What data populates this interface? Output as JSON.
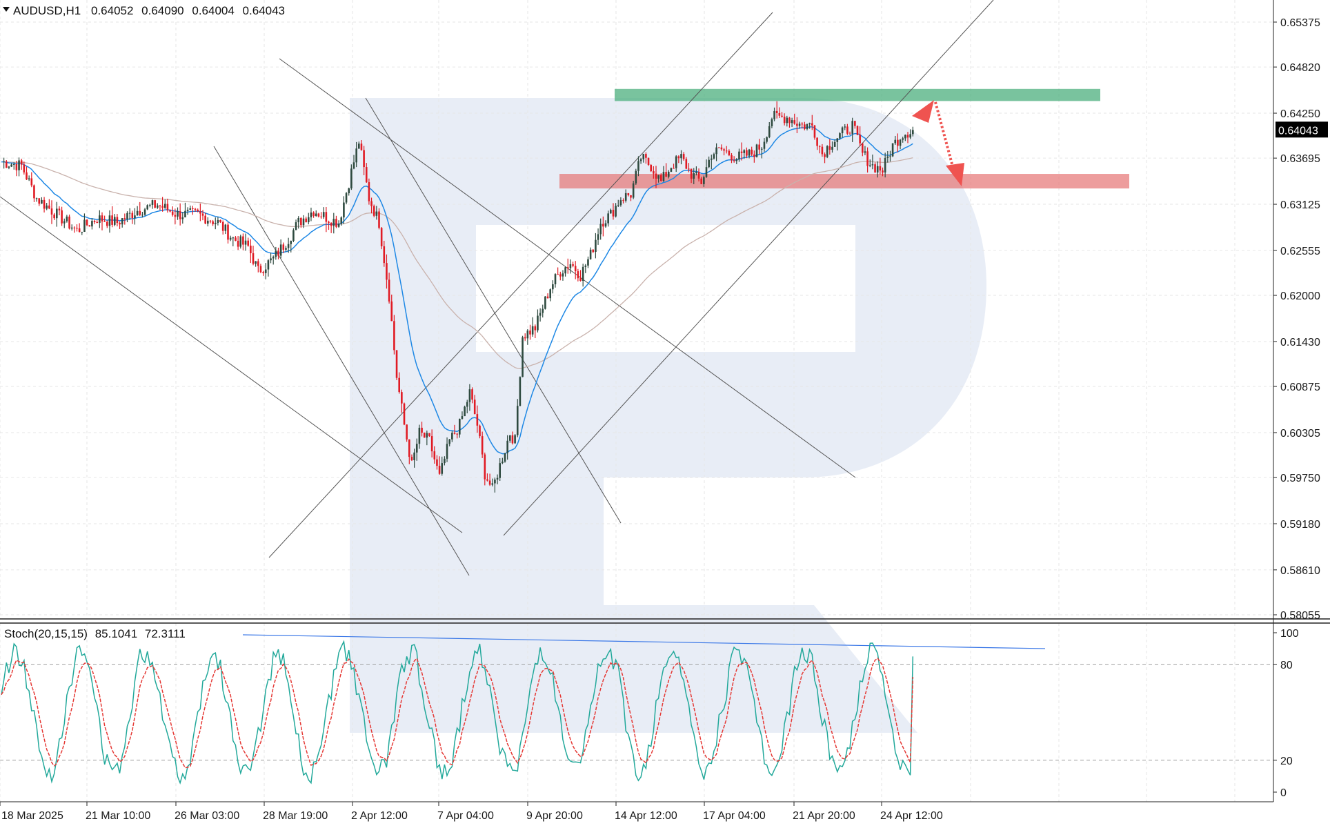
{
  "header": {
    "symbol_timeframe": "AUDUSD,H1",
    "open": "0.64052",
    "high": "0.64090",
    "low": "0.64004",
    "close": "0.64043"
  },
  "current_price": "0.64043",
  "stoch": {
    "label": "Stoch(20,15,15)",
    "main_value": "85.1041",
    "signal_value": "72.3111",
    "levels": [
      100,
      80,
      20,
      0
    ],
    "ticks": [
      "100",
      "80",
      "20",
      "0"
    ]
  },
  "colors": {
    "bull_candle": "#2e4a3f",
    "bear_candle": "#e01b24",
    "ma_fast": "#1e88e5",
    "ma_slow": "#c9b2ac",
    "resistance_zone": "#4caf7d",
    "support_zone": "#e57373",
    "stoch_main": "#21a89a",
    "stoch_signal": "#e53935",
    "trendline": "#555555",
    "arrow": "#ef5350",
    "watermark": "#e8edf6"
  },
  "chart_data": [
    {
      "type": "candlestick",
      "title": "AUDUSD,H1",
      "x_tick_labels": [
        "18 Mar 2025",
        "21 Mar 10:00",
        "26 Mar 03:00",
        "28 Mar 19:00",
        "2 Apr 12:00",
        "7 Apr 04:00",
        "9 Apr 20:00",
        "14 Apr 12:00",
        "17 Apr 04:00",
        "21 Apr 20:00",
        "24 Apr 12:00"
      ],
      "y_tick_labels": [
        "0.65375",
        "0.64820",
        "0.64250",
        "0.63695",
        "0.63125",
        "0.62555",
        "0.62000",
        "0.61430",
        "0.60875",
        "0.60305",
        "0.59750",
        "0.59180",
        "0.58610",
        "0.58055"
      ],
      "ylim": [
        0.58055,
        0.65375
      ],
      "price_path_knots": [
        [
          0,
          0.6365
        ],
        [
          8,
          0.636
        ],
        [
          14,
          0.632
        ],
        [
          22,
          0.63
        ],
        [
          30,
          0.628
        ],
        [
          38,
          0.6295
        ],
        [
          46,
          0.629
        ],
        [
          54,
          0.6305
        ],
        [
          62,
          0.6312
        ],
        [
          70,
          0.63
        ],
        [
          78,
          0.63
        ],
        [
          86,
          0.629
        ],
        [
          92,
          0.627
        ],
        [
          98,
          0.626
        ],
        [
          102,
          0.623
        ],
        [
          108,
          0.6245
        ],
        [
          114,
          0.627
        ],
        [
          118,
          0.629
        ],
        [
          124,
          0.6305
        ],
        [
          130,
          0.6295
        ],
        [
          134,
          0.629
        ],
        [
          138,
          0.634
        ],
        [
          142,
          0.639
        ],
        [
          146,
          0.632
        ],
        [
          150,
          0.629
        ],
        [
          154,
          0.62
        ],
        [
          157,
          0.61
        ],
        [
          160,
          0.604
        ],
        [
          163,
          0.599
        ],
        [
          166,
          0.603
        ],
        [
          170,
          0.602
        ],
        [
          174,
          0.5975
        ],
        [
          178,
          0.602
        ],
        [
          182,
          0.604
        ],
        [
          186,
          0.608
        ],
        [
          189,
          0.604
        ],
        [
          192,
          0.598
        ],
        [
          195,
          0.596
        ],
        [
          198,
          0.599
        ],
        [
          202,
          0.603
        ],
        [
          204,
          0.602
        ],
        [
          207,
          0.615
        ],
        [
          212,
          0.616
        ],
        [
          218,
          0.621
        ],
        [
          222,
          0.623
        ],
        [
          226,
          0.624
        ],
        [
          230,
          0.6225
        ],
        [
          234,
          0.625
        ],
        [
          238,
          0.629
        ],
        [
          242,
          0.63
        ],
        [
          246,
          0.632
        ],
        [
          250,
          0.6325
        ],
        [
          254,
          0.637
        ],
        [
          258,
          0.636
        ],
        [
          262,
          0.634
        ],
        [
          266,
          0.636
        ],
        [
          270,
          0.637
        ],
        [
          274,
          0.635
        ],
        [
          278,
          0.634
        ],
        [
          282,
          0.6375
        ],
        [
          286,
          0.638
        ],
        [
          292,
          0.637
        ],
        [
          298,
          0.6375
        ],
        [
          302,
          0.6385
        ],
        [
          306,
          0.642
        ],
        [
          312,
          0.642
        ],
        [
          318,
          0.641
        ],
        [
          322,
          0.641
        ],
        [
          326,
          0.6375
        ],
        [
          330,
          0.639
        ],
        [
          334,
          0.64
        ],
        [
          338,
          0.641
        ],
        [
          342,
          0.6375
        ],
        [
          346,
          0.636
        ],
        [
          350,
          0.6355
        ],
        [
          354,
          0.6385
        ],
        [
          358,
          0.64
        ],
        [
          362,
          0.6404
        ]
      ],
      "moving_averages": [
        "ma_fast",
        "ma_slow"
      ],
      "resistance_zone": [
        0.644,
        0.6455
      ],
      "support_zone": [
        0.6332,
        0.635
      ],
      "grid": true
    },
    {
      "type": "line",
      "title": "Stoch(20,15,15)",
      "ylim": [
        0,
        100
      ],
      "levels": [
        20,
        80
      ],
      "main_last": 85.1041,
      "signal_last": 72.3111
    }
  ]
}
